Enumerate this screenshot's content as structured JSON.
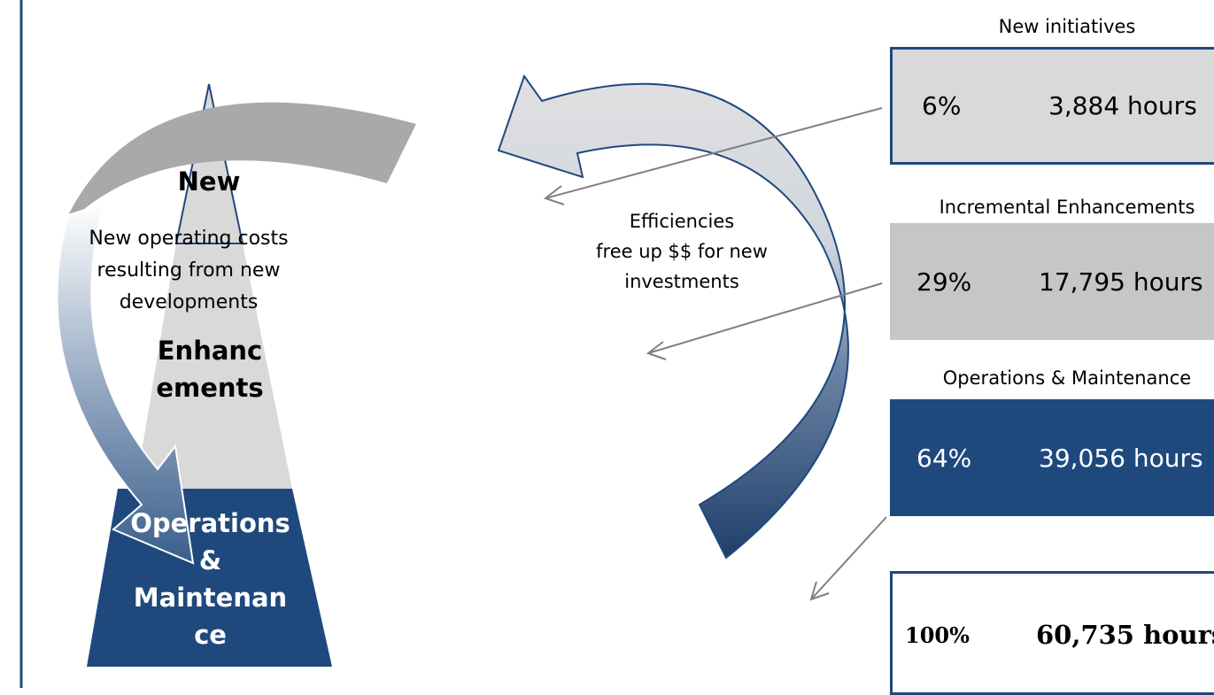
{
  "pyramid": {
    "new_label": "New",
    "enhancements_label": "Enhanc\nements",
    "operations_label": "Operations\n&\nMaintenan\nce"
  },
  "annotations": {
    "new_costs": "New operating costs\nresulting from new\ndevelopments",
    "efficiencies": "Efficiencies\nfree up $$ for new\ninvestments"
  },
  "categories": [
    {
      "caption": "New initiatives",
      "percent": "6%",
      "hours": "3,884 hours"
    },
    {
      "caption": "Incremental Enhancements",
      "percent": "29%",
      "hours": "17,795 hours"
    },
    {
      "caption": "Operations & Maintenance",
      "percent": "64%",
      "hours": "39,056 hours"
    }
  ],
  "total": {
    "percent": "100%",
    "hours": "60,735 hours"
  },
  "colors": {
    "navy": "#1f497d",
    "light_gray": "#d9d9d9",
    "mid_gray": "#c6c6c6",
    "dark_gray": "#a6a6a6"
  }
}
